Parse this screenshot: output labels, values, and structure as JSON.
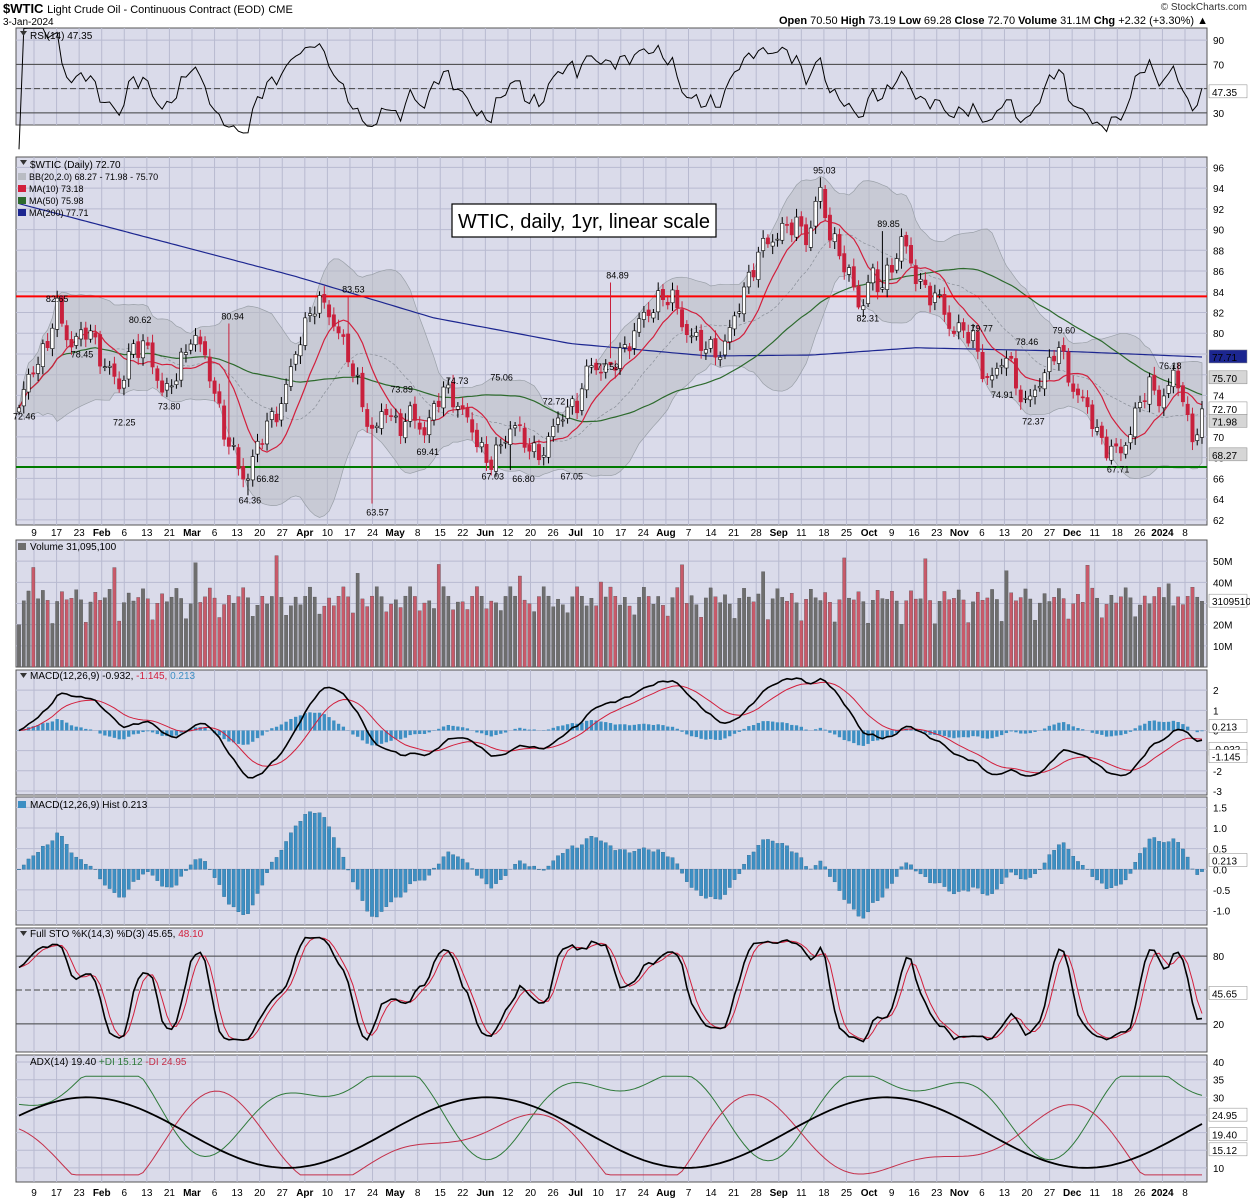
{
  "header": {
    "symbol": "$WTIC",
    "description": "Light Crude Oil - Continuous Contract (EOD)",
    "exchange": "CME",
    "date": "3-Jan-2024",
    "credit": "© StockCharts.com",
    "open_label": "Open",
    "open": "70.50",
    "high_label": "High",
    "high": "73.19",
    "low_label": "Low",
    "low": "69.28",
    "close_label": "Close",
    "close": "72.70",
    "volume_label": "Volume",
    "volume": "31.1M",
    "chg_label": "Chg",
    "chg": "+2.32 (+3.30%)"
  },
  "colors": {
    "panel_bg": "#dadbea",
    "grid": "#b8bad0",
    "up": "#ffffff",
    "down": "#c8203c",
    "bb_fill": "#b9bcc3",
    "ma10": "#d21f3c",
    "ma50": "#2d6a2d",
    "ma200": "#1c2690",
    "red_line": "#ff0000",
    "green_line": "#007a00",
    "hist": "#3d8fc3",
    "vol_up": "#6e6e6e",
    "vol_down": "#c85a6a",
    "di_plus": "#2f7a3a",
    "di_minus": "#c4304a"
  },
  "x_axis": {
    "labels": [
      "9",
      "17",
      "23",
      "Feb",
      "6",
      "13",
      "21",
      "Mar",
      "6",
      "13",
      "20",
      "27",
      "Apr",
      "10",
      "17",
      "24",
      "May",
      "8",
      "15",
      "22",
      "Jun",
      "12",
      "20",
      "26",
      "Jul",
      "10",
      "17",
      "24",
      "Aug",
      "7",
      "14",
      "21",
      "28",
      "Sep",
      "11",
      "18",
      "25",
      "Oct",
      "9",
      "16",
      "23",
      "Nov",
      "6",
      "13",
      "20",
      "27",
      "Dec",
      "11",
      "18",
      "26",
      "2024",
      "8"
    ],
    "bold": [
      "Feb",
      "Mar",
      "Apr",
      "May",
      "Jun",
      "Jul",
      "Aug",
      "Sep",
      "Oct",
      "Nov",
      "Dec",
      "2024"
    ]
  },
  "rsi": {
    "title": "RSI(14) 47.35",
    "value": "47.35",
    "ticks": [
      "90",
      "70",
      "50",
      "30"
    ]
  },
  "price": {
    "title": "$WTIC (Daily) 72.70",
    "legend": [
      "BB(20,2.0) 68.27 - 71.98 - 75.70",
      "MA(10) 73.18",
      "MA(50) 75.98",
      "MA(200) 77.71"
    ],
    "annotation": "WTIC, daily, 1yr, linear scale",
    "ticks": [
      "96",
      "94",
      "92",
      "90",
      "88",
      "86",
      "84",
      "82",
      "80",
      "78",
      "76",
      "74",
      "72",
      "70",
      "68",
      "66",
      "64",
      "62"
    ],
    "tags": [
      "77.71",
      "75.70",
      "72.70",
      "71.98",
      "68.27"
    ],
    "peak_labels": [
      "72.46",
      "82.65",
      "78.45",
      "72.25",
      "80.62",
      "73.80",
      "80.94",
      "64.36",
      "66.82",
      "83.53",
      "63.57",
      "73.89",
      "69.41",
      "74.73",
      "67.03",
      "75.06",
      "66.80",
      "72.72",
      "67.05",
      "84.89",
      "77.59",
      "95.03",
      "82.31",
      "89.85",
      "79.77",
      "74.91",
      "78.46",
      "72.37",
      "79.60",
      "76.18",
      "67.71"
    ]
  },
  "volume": {
    "title": "Volume 31,095,100",
    "value": "31095100",
    "ticks": [
      "50M",
      "40M",
      "30M",
      "20M",
      "10M"
    ]
  },
  "macd": {
    "title_a": "MACD(12,26,9) -0.932,",
    "title_b": " -1.145,",
    "title_c": " 0.213",
    "ticks": [
      "2",
      "1",
      "0",
      "-1",
      "-2",
      "-3"
    ],
    "tags": [
      "0.213",
      "-0.932",
      "-1.145"
    ]
  },
  "hist": {
    "title": "MACD(12,26,9) Hist 0.213",
    "ticks": [
      "1.5",
      "1.0",
      "0.5",
      "0.0",
      "-0.5",
      "-1.0"
    ],
    "tag": "0.213"
  },
  "sto": {
    "title_a": "Full STO %K(14,3) %D(3) 45.65,",
    "title_b": " 48.10",
    "ticks": [
      "80",
      "20"
    ],
    "tag": "45.65"
  },
  "adx": {
    "title_a": "ADX(14) 19.40",
    "title_b": " +DI 15.12",
    "title_c": " -DI 24.95",
    "ticks": [
      "40",
      "35",
      "30",
      "25",
      "20",
      "15",
      "10"
    ],
    "tags": [
      "24.95",
      "19.40",
      "15.12"
    ]
  },
  "chart_data": {
    "type": "line",
    "title": "$WTIC (Daily) 72.70",
    "ylim": [
      62,
      96
    ],
    "series": [
      {
        "name": "$WTIC",
        "x": [
          "Jan",
          "Jan",
          "Feb",
          "Mar",
          "Mar",
          "Apr",
          "May",
          "Jun",
          "Jun",
          "Jul",
          "Aug",
          "Aug",
          "Sep",
          "Sep",
          "Oct",
          "Oct",
          "Nov",
          "Nov",
          "Dec",
          "Dec",
          "Jan"
        ],
        "values": [
          72.46,
          82.65,
          72.25,
          80.94,
          64.36,
          83.53,
          63.57,
          74.73,
          66.8,
          75.06,
          84.89,
          77.59,
          95.03,
          82.31,
          89.85,
          79.77,
          74.91,
          79.6,
          67.71,
          76.18,
          72.7
        ]
      }
    ]
  }
}
